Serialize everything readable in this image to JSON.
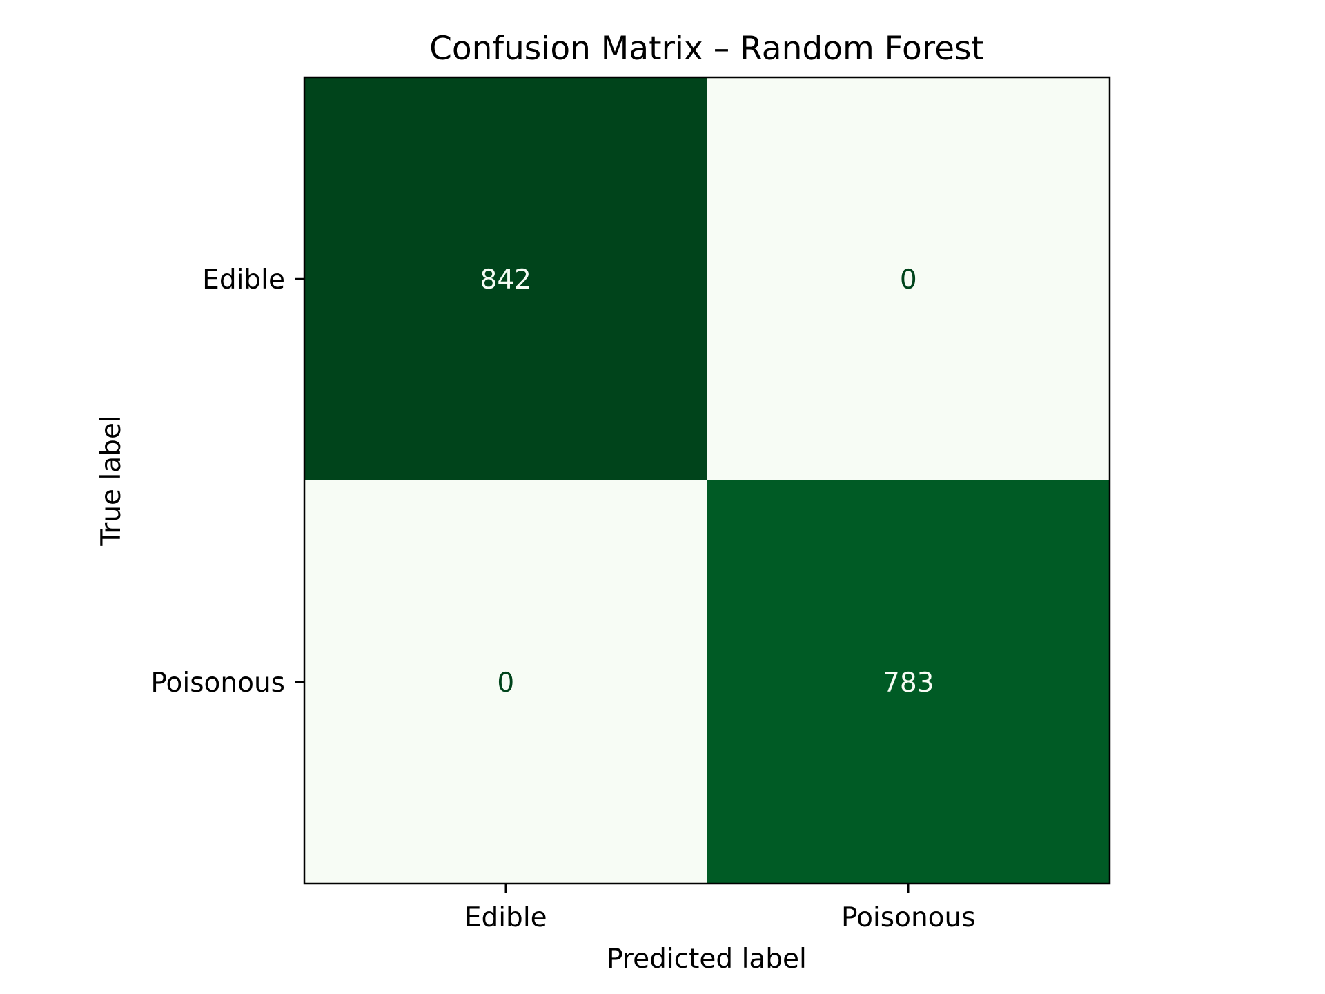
{
  "chart_data": {
    "type": "heatmap",
    "title": "Confusion Matrix – Random Forest",
    "xlabel": "Predicted label",
    "ylabel": "True label",
    "x_categories": [
      "Edible",
      "Poisonous"
    ],
    "y_categories": [
      "Edible",
      "Poisonous"
    ],
    "values": [
      [
        842,
        0
      ],
      [
        0,
        783
      ]
    ],
    "colormap": "Greens",
    "colors": {
      "high": "#00441b",
      "mid_high": "#005a26",
      "low": "#f7fcf5",
      "text_on_dark": "#f7fcf5",
      "text_on_light": "#00441b"
    },
    "colorbar": false,
    "grid": false
  }
}
